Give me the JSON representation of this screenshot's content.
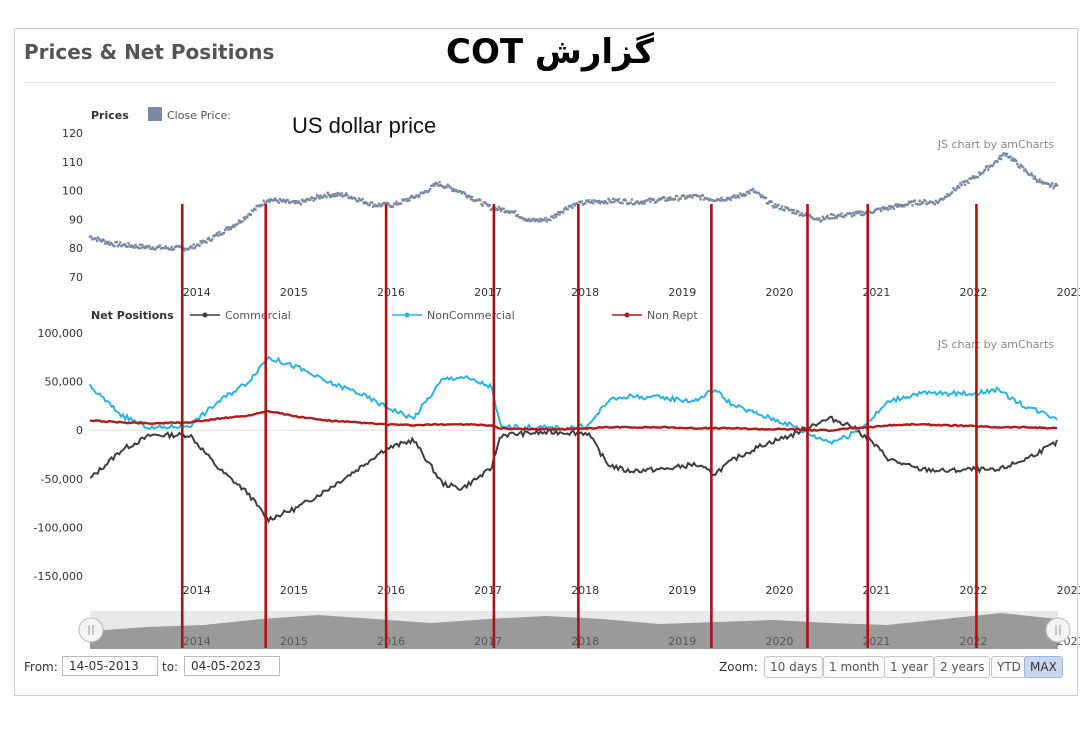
{
  "header": {
    "title": "Prices & Net Positions",
    "overlay_title": "گزارش COT",
    "overlay_subtitle": "US dollar price"
  },
  "colors": {
    "price": "#7b8aa3",
    "commercial": "#3f3f3f",
    "noncommercial": "#2bb3e3",
    "nonrept": "#b01c1c",
    "marker_lines": "#b01010",
    "navigator": "#9a9a9a"
  },
  "chart_data": [
    {
      "type": "scatter",
      "panel_label": "Prices",
      "legend": [
        {
          "name": "Close Price:"
        }
      ],
      "credit": "JS chart by amCharts",
      "yticks": [
        "120",
        "110",
        "100",
        "90",
        "80",
        "70"
      ],
      "ylim": [
        70,
        120
      ],
      "xticks": [
        "2014",
        "2015",
        "2016",
        "2017",
        "2018",
        "2019",
        "2020",
        "2021",
        "2022",
        "2023"
      ],
      "xlim": [
        2013.37,
        2023.34
      ],
      "series": [
        {
          "name": "Close Price:",
          "x": [
            2013.37,
            2013.6,
            2013.9,
            2014.2,
            2014.4,
            2014.6,
            2014.9,
            2015.2,
            2015.5,
            2015.8,
            2016.0,
            2016.3,
            2016.5,
            2016.8,
            2016.95,
            2017.2,
            2017.5,
            2017.7,
            2017.9,
            2018.1,
            2018.3,
            2018.5,
            2018.8,
            2019.0,
            2019.3,
            2019.6,
            2019.8,
            2020.0,
            2020.2,
            2020.4,
            2020.6,
            2020.9,
            2021.0,
            2021.3,
            2021.6,
            2021.9,
            2022.1,
            2022.3,
            2022.5,
            2022.7,
            2022.8,
            2023.0,
            2023.2,
            2023.34
          ],
          "values": [
            84,
            81.5,
            80.5,
            80,
            80,
            83,
            89,
            97,
            95.5,
            98.5,
            98.5,
            95,
            95,
            99,
            102.5,
            99.5,
            94,
            93,
            89.5,
            90,
            94.5,
            96,
            96.5,
            96,
            97,
            98,
            97,
            97.5,
            100,
            95,
            93,
            90,
            91,
            92,
            94,
            96,
            96,
            101,
            105,
            110,
            113,
            107,
            102,
            101.5
          ]
        }
      ]
    },
    {
      "type": "line",
      "panel_label": "Net Positions",
      "credit": "JS chart by amCharts",
      "yticks": [
        "100,000",
        "50,000",
        "0",
        "-50,000",
        "-100,000",
        "-150,000"
      ],
      "ylim": [
        -150000,
        100000
      ],
      "xticks": [
        "2014",
        "2015",
        "2016",
        "2017",
        "2018",
        "2019",
        "2020",
        "2021",
        "2022",
        "2023"
      ],
      "xlim": [
        2013.37,
        2023.34
      ],
      "x": [
        2013.37,
        2013.7,
        2014.0,
        2014.4,
        2014.7,
        2015.0,
        2015.2,
        2015.5,
        2015.8,
        2016.1,
        2016.4,
        2016.7,
        2017.0,
        2017.2,
        2017.5,
        2017.6,
        2017.9,
        2018.2,
        2018.5,
        2018.7,
        2018.9,
        2019.3,
        2019.6,
        2019.8,
        2020.0,
        2020.3,
        2020.6,
        2020.8,
        2021.0,
        2021.2,
        2021.4,
        2021.6,
        2021.9,
        2022.2,
        2022.5,
        2022.7,
        2023.0,
        2023.34
      ],
      "series": [
        {
          "name": "Commercial",
          "values": [
            -50000,
            -20000,
            -5000,
            -5000,
            -40000,
            -65000,
            -92000,
            -80000,
            -62000,
            -42000,
            -20000,
            -10000,
            -55000,
            -60000,
            -40000,
            -5000,
            -3000,
            -2000,
            -3000,
            -35000,
            -42000,
            -40000,
            -35000,
            -45000,
            -30000,
            -15000,
            -5000,
            5000,
            12000,
            5000,
            -10000,
            -30000,
            -40000,
            -42000,
            -40000,
            -42000,
            -30000,
            -12000
          ]
        },
        {
          "name": "NonCommercial",
          "values": [
            45000,
            15000,
            2000,
            5000,
            30000,
            50000,
            75000,
            65000,
            50000,
            40000,
            25000,
            12000,
            52000,
            55000,
            45000,
            3000,
            3000,
            2000,
            4000,
            30000,
            35000,
            33000,
            30000,
            42000,
            25000,
            15000,
            5000,
            -5000,
            -12000,
            -5000,
            10000,
            30000,
            38000,
            38000,
            38000,
            42000,
            25000,
            12000
          ]
        },
        {
          "name": "Non Rept",
          "values": [
            10000,
            8000,
            7000,
            8000,
            12000,
            15000,
            20000,
            14000,
            10000,
            8000,
            6000,
            5000,
            6000,
            6000,
            5000,
            2000,
            1000,
            1000,
            2000,
            3000,
            3000,
            3000,
            2000,
            2000,
            2000,
            1000,
            1000,
            0,
            0,
            2000,
            3000,
            5000,
            6000,
            5000,
            4000,
            3000,
            3000,
            2000
          ]
        }
      ]
    }
  ],
  "marker_lines_x": [
    2014.32,
    2015.18,
    2016.42,
    2017.53,
    2018.4,
    2019.77,
    2020.76,
    2021.38,
    2022.5
  ],
  "navigator": {
    "labels": [
      "2014",
      "2015",
      "2016",
      "2017",
      "2018",
      "2019",
      "2020",
      "2021",
      "2022",
      "2023"
    ],
    "profile": [
      18,
      22,
      24,
      30,
      34,
      30,
      26,
      30,
      33,
      30,
      25,
      27,
      29,
      26,
      24,
      30,
      36,
      30
    ]
  },
  "range": {
    "from_label": "From:",
    "from_value": "14-05-2013",
    "to_label": "to:",
    "to_value": "04-05-2023"
  },
  "zoom": {
    "label": "Zoom:",
    "buttons": [
      "10 days",
      "1 month",
      "1 year",
      "2 years",
      "YTD",
      "MAX"
    ],
    "active": "MAX"
  }
}
